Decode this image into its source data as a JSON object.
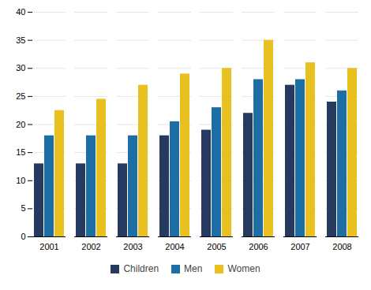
{
  "chart_data": {
    "type": "bar",
    "categories": [
      "2001",
      "2002",
      "2003",
      "2004",
      "2005",
      "2006",
      "2007",
      "2008"
    ],
    "series": [
      {
        "name": "Children",
        "color": "#253a5e",
        "values": [
          13,
          13,
          13,
          18,
          19,
          22,
          27,
          24
        ]
      },
      {
        "name": "Men",
        "color": "#1c6ea4",
        "values": [
          18,
          18,
          18,
          20.5,
          23,
          28,
          28,
          26
        ]
      },
      {
        "name": "Women",
        "color": "#e8c020",
        "values": [
          22.5,
          24.5,
          27,
          29,
          30,
          35,
          31,
          30
        ]
      }
    ],
    "ylim": [
      0,
      40
    ],
    "yticks": [
      0,
      5,
      10,
      15,
      20,
      25,
      30,
      35,
      40
    ],
    "grid": true,
    "legend": "bottom"
  }
}
